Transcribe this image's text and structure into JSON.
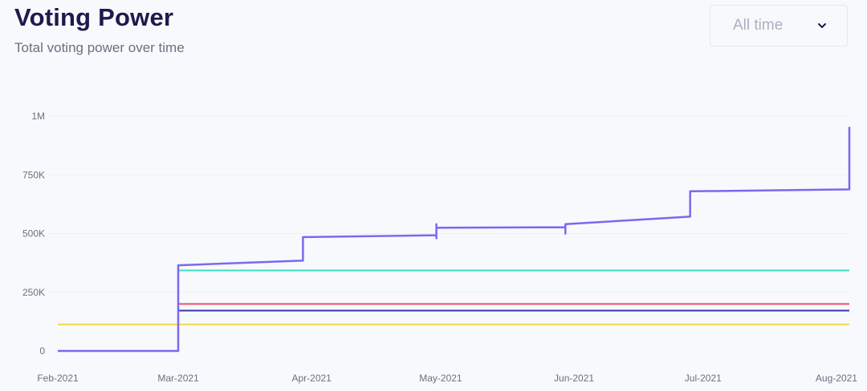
{
  "header": {
    "title": "Voting Power",
    "subtitle": "Total voting power over time"
  },
  "range_select": {
    "value": "All time",
    "icon": "chevron-down-icon"
  },
  "chart_data": {
    "type": "line",
    "title": "Voting Power",
    "subtitle": "Total voting power over time",
    "xlabel": "",
    "ylabel": "",
    "ylim": [
      0,
      1000000
    ],
    "yticks": [
      0,
      250000,
      500000,
      750000,
      1000000
    ],
    "ytick_labels": [
      "0",
      "250K",
      "500K",
      "750K",
      "1M"
    ],
    "xticks": [
      "2021-02-01",
      "2021-03-01",
      "2021-04-01",
      "2021-05-01",
      "2021-06-01",
      "2021-07-01",
      "2021-08-01"
    ],
    "xtick_labels": [
      "Feb-2021",
      "Mar-2021",
      "Apr-2021",
      "May-2021",
      "Jun-2021",
      "Jul-2021",
      "Aug-2021"
    ],
    "xlim": [
      "2021-02-01",
      "2021-08-04"
    ],
    "grid": "horizontal",
    "legend": "none",
    "series": [
      {
        "color": "#7b68f0",
        "points": [
          [
            "2021-02-01",
            0
          ],
          [
            "2021-03-01",
            0
          ],
          [
            "2021-03-01",
            365000
          ],
          [
            "2021-03-30",
            385000
          ],
          [
            "2021-03-30",
            485000
          ],
          [
            "2021-04-30",
            493000
          ],
          [
            "2021-04-30",
            540000
          ],
          [
            "2021-04-30",
            480000
          ],
          [
            "2021-04-30",
            525000
          ],
          [
            "2021-05-30",
            527000
          ],
          [
            "2021-05-30",
            500000
          ],
          [
            "2021-05-30",
            540000
          ],
          [
            "2021-06-28",
            572000
          ],
          [
            "2021-06-28",
            680000
          ],
          [
            "2021-08-04",
            688000
          ],
          [
            "2021-08-04",
            955000
          ]
        ]
      },
      {
        "color": "#3de0c2",
        "points": [
          [
            "2021-03-01",
            0
          ],
          [
            "2021-03-01",
            343000
          ],
          [
            "2021-08-04",
            343000
          ]
        ]
      },
      {
        "color": "#f04f6e",
        "points": [
          [
            "2021-03-01",
            200000
          ],
          [
            "2021-08-04",
            200000
          ]
        ]
      },
      {
        "color": "#3b36a8",
        "points": [
          [
            "2021-02-01",
            0
          ],
          [
            "2021-03-01",
            0
          ],
          [
            "2021-03-01",
            172000
          ],
          [
            "2021-08-04",
            172000
          ]
        ]
      },
      {
        "color": "#f2d84b",
        "points": [
          [
            "2021-02-01",
            113000
          ],
          [
            "2021-08-04",
            113000
          ]
        ]
      }
    ]
  }
}
